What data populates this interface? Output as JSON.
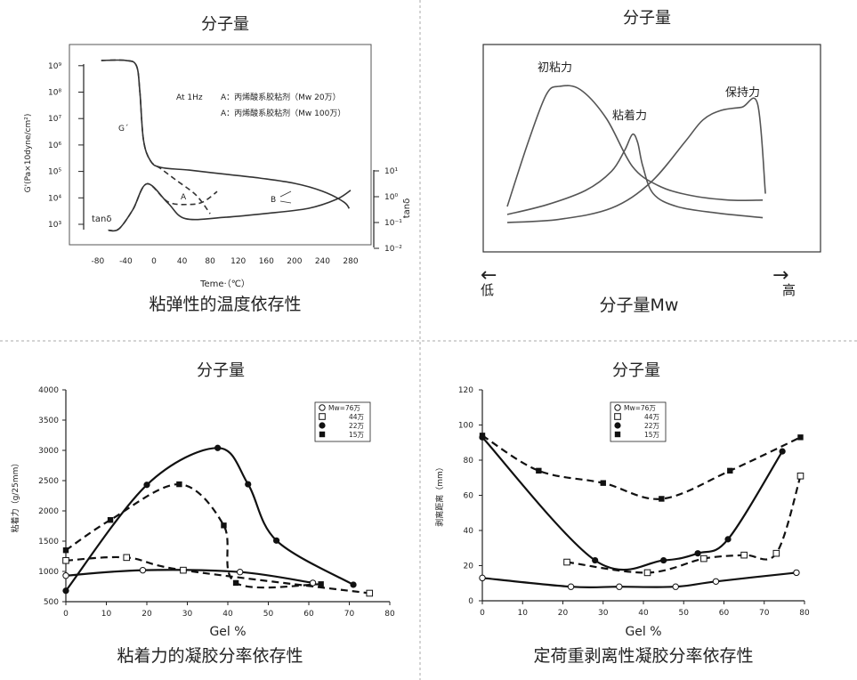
{
  "panels": {
    "tl": {
      "title": "分子量",
      "caption": "粘弹性的温度依存性",
      "xlabel": "Teme·（℃）",
      "ylabel": "G'(Pa×10dyne/cm²)",
      "y2label": "tanδ",
      "legend_cond": "At 1Hz",
      "legend_a1": "A：丙烯酸系胶粘剂（Mw  20万）",
      "legend_a2": "A：丙烯酸系胶粘剂（Mw  100万）",
      "ann_g": "G´",
      "ann_tan": "tanδ",
      "ann_a": "A",
      "ann_b": "B"
    },
    "tr": {
      "title": "分子量",
      "caption": "分子量Mw",
      "low": "低",
      "high": "高",
      "arrow_left": "←",
      "arrow_right": "→",
      "label_tack": "初粘力",
      "label_adhesion": "粘着力",
      "label_holding": "保持力"
    },
    "bl": {
      "title": "分子量",
      "caption": "粘着力的凝胶分率依存性",
      "xlabel": "Gel %",
      "ylabel": "粘着力（g/25mm）"
    },
    "br": {
      "title": "分子量",
      "caption": "定荷重剥离性凝胶分率依存性",
      "xlabel": "Gel %",
      "ylabel": "剥离距离（mm）"
    }
  },
  "chart_data": [
    {
      "type": "line",
      "id": "viscoelastic",
      "title": "分子量",
      "xlabel": "Teme·（℃）",
      "ylabel": "G'(Pa×10dyne/cm²)",
      "xlim": [
        -90,
        290
      ],
      "x_ticks": [
        "-80",
        "-40",
        "0",
        "40",
        "80",
        "120",
        "160",
        "200",
        "240",
        "280"
      ],
      "y_ticks": [
        "10³",
        "10⁴",
        "10⁵",
        "10⁶",
        "10⁷",
        "10⁸",
        "10⁹"
      ],
      "y2_ticks": [
        "10⁻²",
        "10⁻¹",
        "10⁰",
        "10¹"
      ],
      "ylim_log": [
        3,
        9
      ],
      "y2lim_log": [
        -2,
        1
      ],
      "series": [
        {
          "name": "G' Mw 20万",
          "axis": "left",
          "style": "dashed",
          "x": [
            -75,
            -40,
            -25,
            -20,
            -15,
            -5,
            10,
            30,
            60,
            80
          ],
          "y": [
            9.2,
            9.2,
            9.0,
            8.0,
            6.2,
            5.4,
            5.1,
            4.7,
            4.1,
            3.4
          ]
        },
        {
          "name": "G' Mw 100万",
          "axis": "left",
          "style": "solid",
          "x": [
            -75,
            -40,
            -25,
            -20,
            -15,
            -5,
            10,
            50,
            100,
            150,
            200,
            240,
            270,
            278
          ],
          "y": [
            9.2,
            9.2,
            9.0,
            8.0,
            6.2,
            5.4,
            5.15,
            5.05,
            4.9,
            4.75,
            4.55,
            4.25,
            3.85,
            3.6
          ]
        },
        {
          "name": "tanδ Mw 20万",
          "axis": "right",
          "style": "dashed",
          "x": [
            -65,
            -50,
            -30,
            -10,
            20,
            50,
            70,
            90
          ],
          "y": [
            -1.3,
            -1.25,
            -0.5,
            0.5,
            -0.2,
            -0.3,
            -0.2,
            0.2
          ]
        },
        {
          "name": "tanδ Mw 100万",
          "axis": "right",
          "style": "solid",
          "x": [
            -65,
            -50,
            -30,
            -10,
            20,
            45,
            100,
            160,
            220,
            260,
            280
          ],
          "y": [
            -1.3,
            -1.25,
            -0.5,
            0.5,
            -0.25,
            -0.85,
            -0.8,
            -0.65,
            -0.45,
            -0.1,
            0.25
          ]
        }
      ]
    },
    {
      "type": "line",
      "id": "mw-properties",
      "title": "分子量",
      "xlabel": "分子量Mw",
      "xlim": [
        0,
        1
      ],
      "ylim": [
        0,
        1
      ],
      "series": [
        {
          "name": "初粘力",
          "x": [
            0.0,
            0.08,
            0.15,
            0.2,
            0.28,
            0.38,
            0.48,
            0.58,
            0.7,
            0.85,
            0.98
          ],
          "y": [
            0.2,
            0.6,
            0.9,
            0.95,
            0.93,
            0.75,
            0.45,
            0.33,
            0.27,
            0.24,
            0.24
          ]
        },
        {
          "name": "粘着力",
          "x": [
            0.0,
            0.15,
            0.3,
            0.4,
            0.45,
            0.48,
            0.5,
            0.52,
            0.56,
            0.65,
            0.8,
            0.98
          ],
          "y": [
            0.15,
            0.21,
            0.3,
            0.42,
            0.55,
            0.65,
            0.6,
            0.45,
            0.28,
            0.2,
            0.16,
            0.13
          ]
        },
        {
          "name": "保持力",
          "x": [
            0.0,
            0.2,
            0.4,
            0.55,
            0.68,
            0.75,
            0.82,
            0.9,
            0.96,
            0.99
          ],
          "y": [
            0.1,
            0.12,
            0.19,
            0.35,
            0.6,
            0.74,
            0.8,
            0.82,
            0.84,
            0.28
          ]
        }
      ]
    },
    {
      "type": "line",
      "id": "adhesion-gel",
      "title": "分子量",
      "xlabel": "Gel %",
      "ylabel": "粘着力（g/25mm）",
      "xlim": [
        0,
        80
      ],
      "ylim": [
        500,
        4000
      ],
      "x_ticks": [
        "0",
        "10",
        "20",
        "30",
        "40",
        "50",
        "60",
        "70",
        "80"
      ],
      "y_ticks": [
        "500",
        "1000",
        "1500",
        "2000",
        "2500",
        "3000",
        "3500",
        "4000"
      ],
      "series": [
        {
          "name": "Mw=76万",
          "marker": "open-circle",
          "style": "solid",
          "x": [
            0,
            19,
            43,
            61
          ],
          "y": [
            930,
            1020,
            990,
            810
          ]
        },
        {
          "name": "44万",
          "marker": "open-square",
          "style": "dashed",
          "x": [
            0,
            15,
            29,
            75
          ],
          "y": [
            1180,
            1230,
            1020,
            640
          ]
        },
        {
          "name": "22万",
          "marker": "filled-circle",
          "style": "solid",
          "x": [
            0,
            20,
            37.5,
            45,
            52,
            71
          ],
          "y": [
            680,
            2430,
            3040,
            2440,
            1510,
            780
          ]
        },
        {
          "name": "15万",
          "marker": "filled-square",
          "style": "dashed",
          "x": [
            0,
            11,
            28,
            39,
            42,
            63
          ],
          "y": [
            1350,
            1850,
            2440,
            1760,
            810,
            790
          ]
        }
      ],
      "legend": [
        "Mw=76万",
        "44万",
        "22万",
        "15万"
      ]
    },
    {
      "type": "line",
      "id": "peel-gel",
      "title": "分子量",
      "xlabel": "Gel %",
      "ylabel": "剥离距离（mm）",
      "xlim": [
        0,
        80
      ],
      "ylim": [
        0,
        120
      ],
      "x_ticks": [
        "0",
        "10",
        "20",
        "30",
        "40",
        "50",
        "60",
        "70",
        "80"
      ],
      "y_ticks": [
        "0",
        "20",
        "40",
        "60",
        "80",
        "100",
        "120"
      ],
      "series": [
        {
          "name": "Mw=76万",
          "marker": "open-circle",
          "style": "solid",
          "x": [
            0,
            22,
            34,
            48,
            58,
            78
          ],
          "y": [
            13,
            8,
            8,
            8,
            11,
            16
          ]
        },
        {
          "name": "44万",
          "marker": "open-square",
          "style": "dashed",
          "x": [
            21,
            41,
            55,
            65,
            73,
            79
          ],
          "y": [
            22,
            16,
            24,
            26,
            27,
            71
          ]
        },
        {
          "name": "22万",
          "marker": "filled-circle",
          "style": "solid",
          "x": [
            0,
            28,
            45,
            53.5,
            61,
            74.5
          ],
          "y": [
            93,
            23,
            23,
            27,
            35,
            85
          ]
        },
        {
          "name": "15万",
          "marker": "filled-square",
          "style": "dashed",
          "x": [
            0,
            14,
            30,
            44.5,
            61.5,
            79
          ],
          "y": [
            94,
            74,
            67,
            58,
            74,
            93
          ]
        }
      ],
      "legend": [
        "Mw=76万",
        "44万",
        "22万",
        "15万"
      ]
    }
  ]
}
